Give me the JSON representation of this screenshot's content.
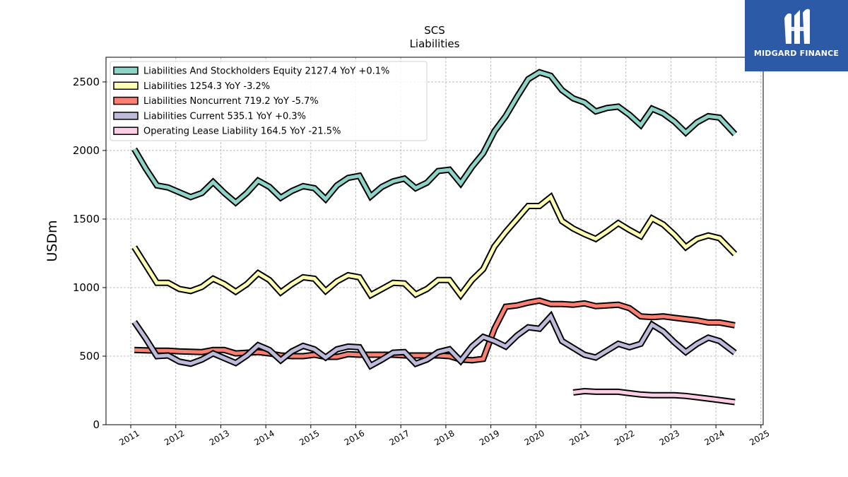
{
  "chart_data": {
    "type": "line",
    "title": "SCS",
    "subtitle": "Liabilities",
    "ylabel": "USDm",
    "xlabel": "",
    "ylim": [
      0,
      2680
    ],
    "xlim": [
      2010.45,
      2025.05
    ],
    "xticks": [
      "2011",
      "2012",
      "2013",
      "2014",
      "2015",
      "2016",
      "2017",
      "2018",
      "2019",
      "2020",
      "2021",
      "2022",
      "2023",
      "2024",
      "2025"
    ],
    "yticks": [
      "0",
      "500",
      "1000",
      "1500",
      "2000",
      "2500"
    ],
    "grid": true,
    "legend_position": "top-left",
    "series": [
      {
        "name": "Liabilities And Stockholders Equity",
        "legend_label": "Liabilities And Stockholders Equity  2127.4 YoY +0.1%",
        "color": "#8dd3c7",
        "x": [
          2011.08,
          2011.33,
          2011.58,
          2011.83,
          2012.08,
          2012.33,
          2012.58,
          2012.83,
          2013.08,
          2013.33,
          2013.58,
          2013.83,
          2014.08,
          2014.33,
          2014.58,
          2014.83,
          2015.08,
          2015.33,
          2015.58,
          2015.83,
          2016.08,
          2016.33,
          2016.58,
          2016.83,
          2017.08,
          2017.33,
          2017.58,
          2017.83,
          2018.08,
          2018.33,
          2018.58,
          2018.83,
          2019.08,
          2019.33,
          2019.58,
          2019.83,
          2020.08,
          2020.33,
          2020.58,
          2020.83,
          2021.08,
          2021.33,
          2021.58,
          2021.83,
          2022.08,
          2022.33,
          2022.58,
          2022.83,
          2023.08,
          2023.33,
          2023.58,
          2023.83,
          2024.08,
          2024.42
        ],
        "values": [
          2010,
          1870,
          1745,
          1730,
          1695,
          1660,
          1690,
          1770,
          1690,
          1620,
          1690,
          1780,
          1735,
          1655,
          1705,
          1740,
          1725,
          1645,
          1745,
          1800,
          1815,
          1665,
          1735,
          1775,
          1795,
          1725,
          1765,
          1850,
          1860,
          1760,
          1880,
          1980,
          2140,
          2250,
          2390,
          2520,
          2570,
          2545,
          2440,
          2380,
          2350,
          2285,
          2310,
          2320,
          2260,
          2185,
          2305,
          2270,
          2210,
          2130,
          2205,
          2250,
          2240,
          2120
        ]
      },
      {
        "name": "Liabilities",
        "legend_label": "Liabilities  1254.3 YoY -3.2%",
        "color": "#ffffb3",
        "x": [
          2011.08,
          2011.33,
          2011.58,
          2011.83,
          2012.08,
          2012.33,
          2012.58,
          2012.83,
          2013.08,
          2013.33,
          2013.58,
          2013.83,
          2014.08,
          2014.33,
          2014.58,
          2014.83,
          2015.08,
          2015.33,
          2015.58,
          2015.83,
          2016.08,
          2016.33,
          2016.58,
          2016.83,
          2017.08,
          2017.33,
          2017.58,
          2017.83,
          2018.08,
          2018.33,
          2018.58,
          2018.83,
          2019.08,
          2019.33,
          2019.58,
          2019.83,
          2020.08,
          2020.33,
          2020.58,
          2020.83,
          2021.08,
          2021.33,
          2021.58,
          2021.83,
          2022.08,
          2022.33,
          2022.58,
          2022.83,
          2023.08,
          2023.33,
          2023.58,
          2023.83,
          2024.08,
          2024.42
        ],
        "values": [
          1295,
          1165,
          1035,
          1035,
          990,
          975,
          1005,
          1065,
          1025,
          970,
          1025,
          1105,
          1055,
          965,
          1025,
          1075,
          1065,
          975,
          1045,
          1090,
          1075,
          945,
          990,
          1035,
          1030,
          950,
          990,
          1055,
          1055,
          945,
          1055,
          1135,
          1300,
          1405,
          1500,
          1595,
          1595,
          1660,
          1485,
          1430,
          1390,
          1355,
          1410,
          1470,
          1420,
          1375,
          1505,
          1460,
          1385,
          1295,
          1355,
          1380,
          1360,
          1245
        ]
      },
      {
        "name": "Liabilities Noncurrent",
        "legend_label": "Liabilities Noncurrent  719.2 YoY -5.7%",
        "color": "#fb8072",
        "x": [
          2011.08,
          2011.33,
          2011.58,
          2011.83,
          2012.08,
          2012.33,
          2012.58,
          2012.83,
          2013.08,
          2013.33,
          2013.58,
          2013.83,
          2014.08,
          2014.33,
          2014.58,
          2014.83,
          2015.08,
          2015.33,
          2015.58,
          2015.83,
          2016.08,
          2016.33,
          2016.58,
          2016.83,
          2017.08,
          2017.33,
          2017.58,
          2017.83,
          2018.08,
          2018.33,
          2018.58,
          2018.83,
          2019.08,
          2019.33,
          2019.58,
          2019.83,
          2020.08,
          2020.33,
          2020.58,
          2020.83,
          2021.08,
          2021.33,
          2021.58,
          2021.83,
          2022.08,
          2022.33,
          2022.58,
          2022.83,
          2023.08,
          2023.33,
          2023.58,
          2023.83,
          2024.08,
          2024.42
        ],
        "values": [
          545,
          542,
          540,
          540,
          535,
          532,
          530,
          545,
          545,
          520,
          525,
          530,
          520,
          505,
          500,
          500,
          510,
          495,
          495,
          515,
          510,
          510,
          510,
          510,
          505,
          505,
          505,
          505,
          500,
          475,
          470,
          480,
          700,
          860,
          870,
          890,
          905,
          880,
          880,
          875,
          885,
          865,
          870,
          875,
          850,
          790,
          785,
          790,
          780,
          770,
          760,
          745,
          745,
          725
        ]
      },
      {
        "name": "Liabilities Current",
        "legend_label": "Liabilities Current  535.1 YoY +0.3%",
        "color": "#bebada",
        "x": [
          2011.08,
          2011.33,
          2011.58,
          2011.83,
          2012.08,
          2012.33,
          2012.58,
          2012.83,
          2013.08,
          2013.33,
          2013.58,
          2013.83,
          2014.08,
          2014.33,
          2014.58,
          2014.83,
          2015.08,
          2015.33,
          2015.58,
          2015.83,
          2016.08,
          2016.33,
          2016.58,
          2016.83,
          2017.08,
          2017.33,
          2017.58,
          2017.83,
          2018.08,
          2018.33,
          2018.58,
          2018.83,
          2019.08,
          2019.33,
          2019.58,
          2019.83,
          2020.08,
          2020.33,
          2020.58,
          2020.83,
          2021.08,
          2021.33,
          2021.58,
          2021.83,
          2022.08,
          2022.33,
          2022.58,
          2022.83,
          2023.08,
          2023.33,
          2023.58,
          2023.83,
          2024.08,
          2024.42
        ],
        "values": [
          750,
          630,
          500,
          505,
          460,
          445,
          475,
          520,
          485,
          450,
          505,
          580,
          545,
          470,
          535,
          575,
          550,
          490,
          550,
          570,
          565,
          430,
          475,
          525,
          530,
          445,
          475,
          530,
          550,
          465,
          570,
          640,
          610,
          570,
          650,
          710,
          700,
          790,
          610,
          560,
          510,
          490,
          540,
          590,
          565,
          590,
          730,
          680,
          600,
          530,
          590,
          635,
          610,
          525
        ]
      },
      {
        "name": "Operating Lease Liability",
        "legend_label": "Operating Lease Liability  164.5 YoY -21.5%",
        "color": "#fccde5",
        "x": [
          2020.83,
          2021.08,
          2021.33,
          2021.58,
          2021.83,
          2022.08,
          2022.33,
          2022.58,
          2022.83,
          2023.08,
          2023.33,
          2023.58,
          2023.83,
          2024.08,
          2024.42
        ],
        "values": [
          235,
          245,
          240,
          240,
          240,
          230,
          220,
          215,
          215,
          215,
          210,
          200,
          190,
          180,
          165
        ]
      }
    ]
  },
  "logo": {
    "text": "MIDGARD FINANCE",
    "color": "#2d5aa6"
  }
}
